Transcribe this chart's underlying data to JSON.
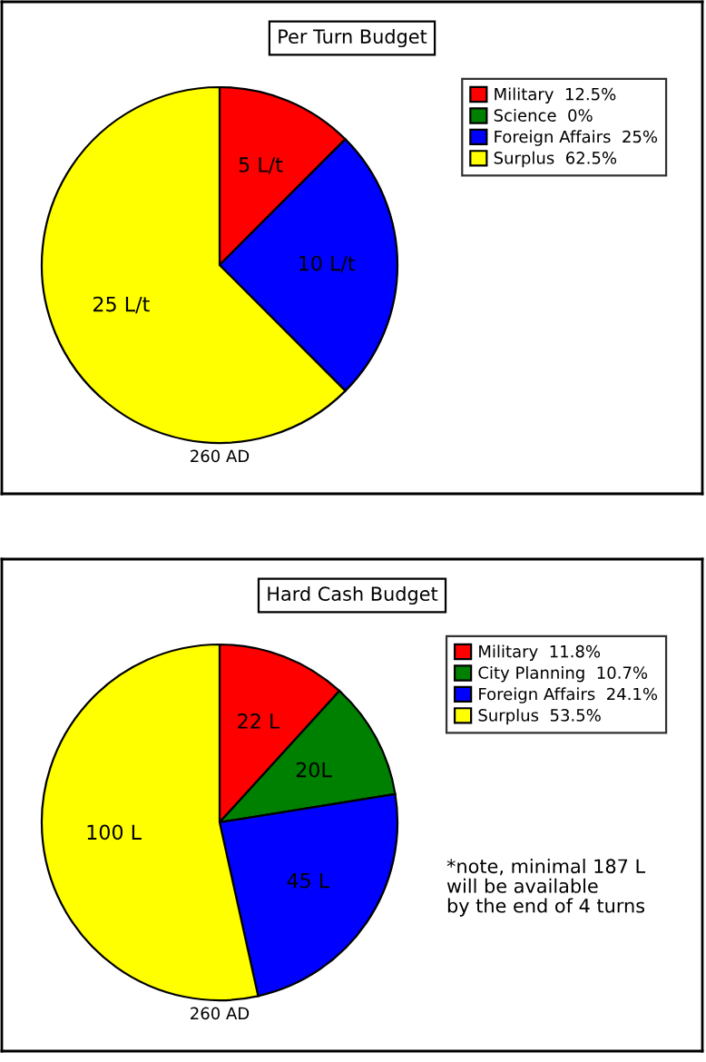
{
  "chart_data": [
    {
      "type": "pie",
      "title": "Per Turn Budget",
      "categories": [
        "Military  12.5%",
        "Science  0%",
        "Foreign Affairs  25%",
        "Surplus  62.5%"
      ],
      "values": [
        5,
        0,
        10,
        25
      ],
      "colors": [
        "#ff0000",
        "#008000",
        "#0000ff",
        "#ffff00"
      ],
      "value_labels": [
        "5 L/t",
        null,
        "10 L/t",
        "25 L/t"
      ],
      "legend": "top right",
      "annotations": [
        "260 AD"
      ]
    },
    {
      "type": "pie",
      "title": "Hard Cash Budget",
      "categories": [
        "Military  11.8%",
        "City Planning  10.7%",
        "Foreign Affairs  24.1%",
        "Surplus  53.5%"
      ],
      "values": [
        22,
        20,
        45,
        100
      ],
      "colors": [
        "#ff0000",
        "#008000",
        "#0000ff",
        "#ffff00"
      ],
      "value_labels": [
        "22 L",
        "20L",
        "45 L",
        "100 L"
      ],
      "legend": "top right",
      "annotations": [
        "260 AD",
        "*note, minimal 187 L\nwill be available\nby the end of 4 turns"
      ]
    }
  ]
}
